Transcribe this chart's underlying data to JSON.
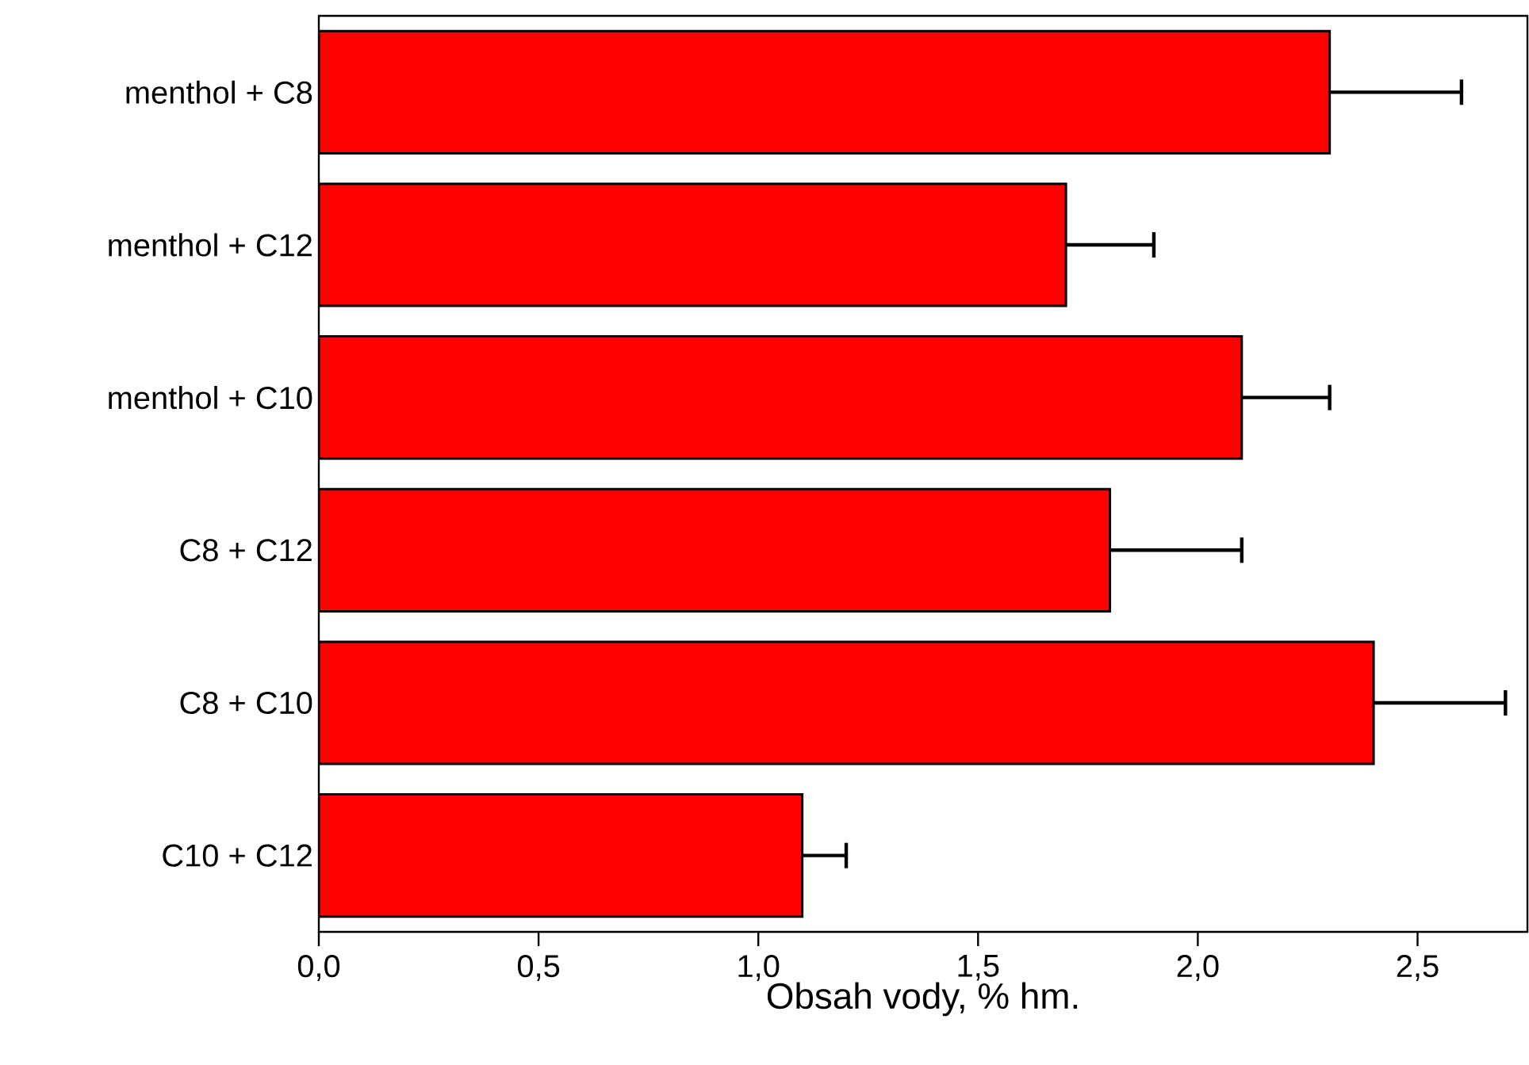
{
  "chart_data": {
    "type": "bar",
    "orientation": "horizontal",
    "xlabel": "Obsah vody, % hm.",
    "categories": [
      "menthol + C8",
      "menthol + C12",
      "menthol + C10",
      "C8 + C12",
      "C8 + C10",
      "C10 + C12"
    ],
    "values": [
      2.3,
      1.7,
      2.1,
      1.8,
      2.4,
      1.1
    ],
    "errors": [
      [
        2.3,
        2.6
      ],
      [
        1.7,
        1.9
      ],
      [
        2.1,
        2.3
      ],
      [
        1.8,
        2.1
      ],
      [
        2.4,
        2.7
      ],
      [
        1.1,
        1.2
      ]
    ],
    "color": "#ff0000",
    "xlim": [
      0,
      2.75
    ],
    "xticks": [
      {
        "value": 0,
        "label": "0,0"
      },
      {
        "value": 0.5,
        "label": "0,5"
      },
      {
        "value": 1.0,
        "label": "1,0"
      },
      {
        "value": 1.5,
        "label": "1,5"
      },
      {
        "value": 2.0,
        "label": "2,0"
      },
      {
        "value": 2.5,
        "label": "2,5"
      }
    ]
  }
}
